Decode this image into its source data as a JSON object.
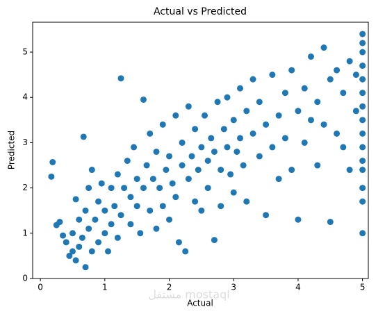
{
  "chart_data": {
    "type": "scatter",
    "title": "Actual vs Predicted",
    "x_label": "Actual",
    "y_label": "Predicted",
    "watermark": "مستقل mostaql",
    "color": "#1f77b4",
    "xlim": [
      -0.12,
      5.09
    ],
    "ylim": [
      0,
      5.66
    ],
    "xticks": [
      0,
      1,
      2,
      3,
      4,
      5
    ],
    "yticks": [
      0,
      1,
      2,
      3,
      4,
      5
    ],
    "x": [
      0.17,
      0.19,
      0.25,
      0.3,
      0.35,
      0.4,
      0.45,
      0.5,
      0.5,
      0.55,
      0.55,
      0.6,
      0.6,
      0.65,
      0.67,
      0.7,
      0.7,
      0.75,
      0.75,
      0.8,
      0.8,
      0.85,
      0.9,
      0.9,
      0.95,
      1.0,
      1.0,
      1.05,
      1.1,
      1.1,
      1.15,
      1.2,
      1.2,
      1.25,
      1.25,
      1.3,
      1.35,
      1.4,
      1.4,
      1.45,
      1.5,
      1.5,
      1.55,
      1.6,
      1.6,
      1.65,
      1.7,
      1.7,
      1.75,
      1.8,
      1.8,
      1.85,
      1.9,
      1.9,
      1.95,
      2.0,
      2.0,
      2.05,
      2.1,
      2.1,
      2.15,
      2.2,
      2.2,
      2.25,
      2.3,
      2.3,
      2.35,
      2.4,
      2.4,
      2.45,
      2.5,
      2.5,
      2.55,
      2.6,
      2.6,
      2.65,
      2.7,
      2.7,
      2.75,
      2.8,
      2.8,
      2.85,
      2.9,
      2.9,
      2.95,
      3.0,
      3.0,
      3.05,
      3.1,
      3.1,
      3.15,
      3.2,
      3.2,
      3.3,
      3.3,
      3.4,
      3.4,
      3.5,
      3.5,
      3.6,
      3.6,
      3.7,
      3.7,
      3.8,
      3.8,
      3.9,
      3.9,
      4.0,
      4.0,
      4.1,
      4.1,
      4.2,
      4.2,
      4.3,
      4.3,
      4.4,
      4.4,
      4.5,
      4.5,
      4.6,
      4.6,
      4.7,
      4.7,
      4.8,
      4.8,
      4.9,
      4.9,
      5.0,
      5.0,
      5.0,
      5.0,
      5.0,
      5.0,
      5.0,
      5.0,
      5.0,
      5.0,
      5.0,
      5.0,
      5.0,
      5.0,
      5.0
    ],
    "y": [
      2.25,
      2.57,
      1.18,
      1.25,
      0.95,
      0.8,
      0.5,
      0.6,
      1.0,
      0.4,
      1.75,
      0.7,
      1.3,
      0.9,
      3.13,
      0.25,
      1.5,
      1.1,
      2.0,
      0.6,
      2.4,
      1.3,
      0.8,
      1.7,
      2.1,
      1.0,
      1.5,
      0.6,
      2.0,
      1.2,
      1.6,
      0.9,
      2.3,
      4.42,
      1.4,
      2.0,
      2.6,
      1.2,
      1.8,
      2.9,
      1.6,
      2.2,
      1.0,
      3.95,
      2.0,
      2.5,
      1.5,
      3.2,
      2.2,
      1.1,
      2.8,
      2.0,
      3.4,
      1.6,
      2.4,
      1.3,
      2.7,
      2.1,
      3.6,
      1.8,
      0.8,
      2.5,
      3.0,
      0.6,
      2.2,
      3.8,
      2.7,
      1.7,
      3.3,
      2.4,
      2.9,
      1.5,
      3.6,
      2.6,
      2.0,
      3.1,
      0.85,
      2.8,
      3.9,
      2.4,
      1.6,
      3.3,
      2.9,
      4.0,
      2.3,
      3.5,
      1.9,
      2.8,
      4.2,
      3.1,
      2.5,
      3.7,
      1.7,
      3.2,
      4.4,
      2.7,
      3.9,
      1.4,
      3.4,
      4.5,
      2.9,
      3.6,
      2.2,
      4.1,
      3.1,
      4.6,
      2.4,
      3.7,
      1.3,
      4.2,
      3.0,
      4.9,
      3.5,
      3.9,
      2.5,
      5.1,
      3.4,
      4.4,
      1.25,
      4.6,
      3.2,
      4.1,
      2.9,
      4.8,
      2.4,
      4.5,
      3.7,
      5.4,
      5.2,
      5.0,
      4.7,
      4.4,
      4.1,
      3.8,
      3.5,
      3.2,
      2.9,
      2.6,
      2.4,
      2.0,
      1.7,
      1.0
    ]
  }
}
